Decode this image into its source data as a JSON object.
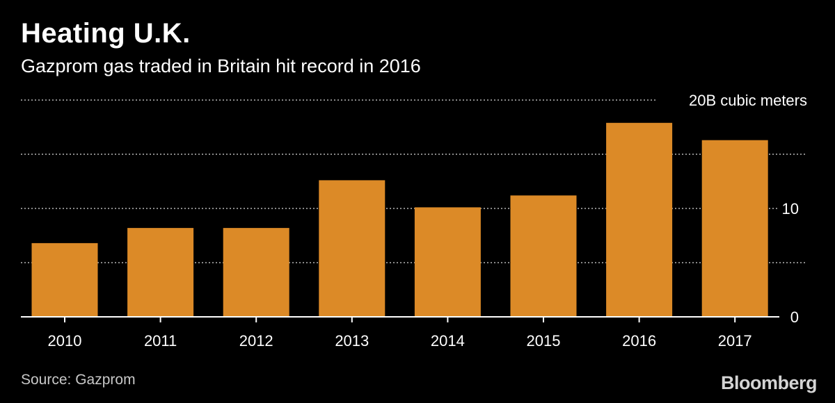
{
  "header": {
    "title": "Heating U.K.",
    "subtitle": "Gazprom gas traded in Britain hit record in 2016"
  },
  "footer": {
    "source": "Source: Gazprom",
    "brand": "Bloomberg"
  },
  "colors": {
    "background": "#000000",
    "bar": "#dc8a27",
    "gridline": "#8a8a8a",
    "axis": "#ffffff",
    "text": "#ffffff"
  },
  "chart_data": {
    "type": "bar",
    "title": "Heating U.K.",
    "subtitle": "Gazprom gas traded in Britain hit record in 2016",
    "categories": [
      "2010",
      "2011",
      "2012",
      "2013",
      "2014",
      "2015",
      "2016",
      "2017"
    ],
    "values": [
      6.8,
      8.2,
      8.2,
      12.6,
      10.1,
      11.2,
      17.9,
      16.3
    ],
    "unit": "billion cubic meters",
    "ylim": [
      0,
      20
    ],
    "yticks": [
      0,
      5,
      10,
      15,
      20
    ],
    "ytick_labels": [
      "0",
      "",
      "10",
      "",
      "20B cubic meters"
    ],
    "y_axis_position": "right",
    "grid": true,
    "grid_style": "dotted",
    "legend": "none",
    "source": "Source: Gazprom"
  }
}
